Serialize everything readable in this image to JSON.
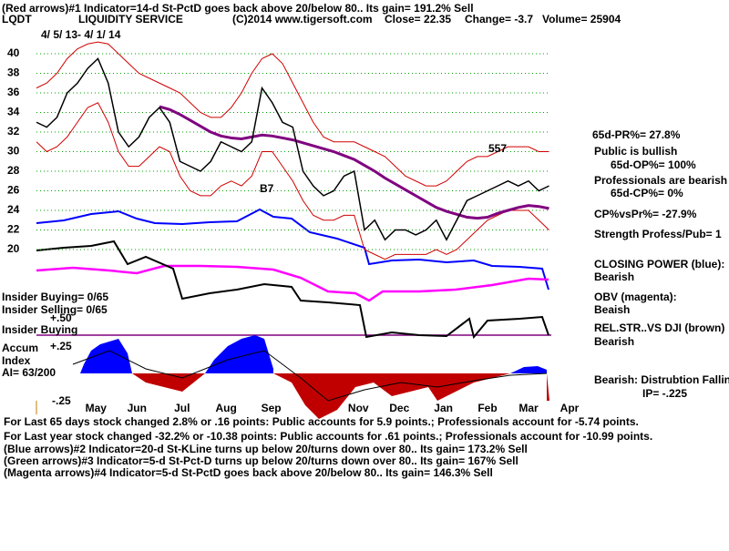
{
  "chart_data": {
    "type": "line",
    "header_lines": [
      "(Red arrows)#1 Indicator=14-d St-PctD goes back above 20/below 80.. Its gain= 191.2% Sell",
      "LQDT",
      "LIQUIDITY SERVICE",
      "(C)2014 www.tigersoft.com",
      "Close=  22.35",
      "Change= -3.7",
      "Volume=  25904",
      "4/ 5/ 13-  4/ 1/ 14"
    ],
    "side_notes": [
      "65d-PR%= 27.8%",
      "Public is bullish",
      "65d-OP%= 100%",
      "Professionals are bearish",
      "65d-CP%= 0%",
      "CP%vsPr%= -27.9%",
      "Strength Profess/Pub= 1",
      "CLOSING POWER (blue):",
      "Bearish",
      "OBV (magenta):",
      "Beaish",
      "REL.STR..VS DJI (brown)",
      "Bearish",
      "Bearish: Distrubtion Falling",
      "IP= -.225"
    ],
    "left_notes": [
      "Insider Buying= 0/65",
      "Insider Selling= 0/65",
      "+.50",
      "Insider Buying",
      "Accum",
      "+.25",
      "Index",
      "AI= 63/200",
      "-.25"
    ],
    "annotations": [
      "557",
      "B7"
    ],
    "footer_lines": [
      "For Last 65 days stock changed  2.8% or  .16 points:  Public accounts for  5.9 points.;  Professionals account for -5.74 points.",
      "For Last year stock changed -32.2% or -10.38 points:  Public accounts for  .61 points.;  Professionals account for -10.99 points.",
      "(Blue arrows)#2 Indicator=20-d St-KLine turns up below 20/turns down over 80.. Its gain= 173.2% Sell",
      "(Green arrows)#3 Indicator=5-d St-Pct-D turns up below 20/turns down over 80.. Its gain= 167% Sell",
      "(Magenta arrows)#4 Indicator=5-d St-PctD goes back above 20/below 80.. Its gain= 146.3% Sell"
    ],
    "x": [
      0,
      1,
      2,
      3,
      4,
      5,
      6,
      7,
      8,
      9,
      10,
      11,
      12,
      13,
      14,
      15,
      16,
      17,
      18,
      19,
      20,
      21,
      22,
      23,
      24,
      25,
      26,
      27,
      28,
      29,
      30,
      31,
      32,
      33,
      34,
      35,
      36,
      37,
      38,
      39,
      40,
      41,
      42,
      43,
      44,
      45,
      46,
      47,
      48,
      49,
      50
    ],
    "xlim": [
      0,
      52
    ],
    "xticks": [
      {
        "value": 5.8,
        "label": "May"
      },
      {
        "value": 9.8,
        "label": "Jun"
      },
      {
        "value": 14.2,
        "label": "Jul"
      },
      {
        "value": 18.5,
        "label": "Aug"
      },
      {
        "value": 22.9,
        "label": "Sep"
      },
      {
        "value": 31.4,
        "label": "Nov"
      },
      {
        "value": 35.4,
        "label": "Dec"
      },
      {
        "value": 39.7,
        "label": "Jan"
      },
      {
        "value": 44,
        "label": "Feb"
      },
      {
        "value": 48,
        "label": "Mar"
      },
      {
        "value": 52,
        "label": "Apr"
      }
    ],
    "ylim": [
      20,
      40
    ],
    "yticks": [
      20,
      22,
      24,
      26,
      28,
      30,
      32,
      34,
      36,
      38,
      40
    ],
    "grid": true,
    "series": [
      {
        "color": "#d00000",
        "width": 1,
        "values": [
          36.5,
          37,
          38,
          39.5,
          40.5,
          41,
          41.2,
          41,
          40,
          39,
          38,
          37.5,
          37,
          36.5,
          36,
          35,
          34,
          33.5,
          33.5,
          34.5,
          36,
          38,
          39.5,
          40,
          39,
          37,
          35,
          33,
          31.5,
          31,
          31,
          31,
          30.5,
          30,
          29.5,
          28.5,
          27.5,
          27,
          26.5,
          26.5,
          27,
          28,
          29,
          29.5,
          29.5,
          30,
          30.5,
          30.5,
          30.5,
          30,
          30
        ]
      },
      {
        "color": "#d00000",
        "width": 1,
        "values": [
          31,
          30,
          30.5,
          31.5,
          33,
          34.5,
          35,
          33,
          30,
          28.5,
          28.5,
          29.5,
          30.5,
          30,
          27.5,
          26,
          25.5,
          25.5,
          26.5,
          27,
          26.5,
          27.5,
          30,
          30,
          28.5,
          27,
          25,
          23.5,
          23,
          23,
          23.5,
          23.5,
          20,
          19.5,
          19,
          19.5,
          19.5,
          19.5,
          19.5,
          20,
          19.5,
          20,
          21,
          22,
          23,
          23.5,
          24,
          24,
          24,
          23,
          22
        ]
      },
      {
        "color": "#800080",
        "width": 3,
        "values": [
          null,
          null,
          null,
          null,
          null,
          null,
          null,
          null,
          null,
          null,
          null,
          null,
          34.6,
          34.3,
          33.8,
          33.2,
          32.6,
          32,
          31.6,
          31.4,
          31.3,
          31.5,
          31.7,
          31.6,
          31.4,
          31.2,
          30.9,
          30.6,
          30.3,
          30,
          29.6,
          29.2,
          28.6,
          28,
          27.3,
          26.7,
          26.1,
          25.5,
          24.9,
          24.3,
          23.9,
          23.6,
          23.3,
          23.2,
          23.3,
          23.7,
          24,
          24.3,
          24.5,
          24.4,
          24.2
        ]
      },
      {
        "color": "#000000",
        "width": 1.5,
        "values": [
          33,
          32.5,
          33.5,
          36,
          37,
          38.5,
          39.5,
          37,
          32,
          30.5,
          31.5,
          33.5,
          34.5,
          33,
          29,
          28.5,
          28,
          29,
          31,
          30.5,
          30,
          31,
          36.5,
          35,
          33,
          32.5,
          28,
          26.5,
          25.5,
          26,
          27.5,
          28,
          22,
          23,
          21,
          22,
          22,
          21.5,
          22,
          23,
          21,
          23,
          25,
          25.5,
          26,
          26.5,
          27,
          26.5,
          27,
          26,
          26.5
        ]
      }
    ]
  }
}
